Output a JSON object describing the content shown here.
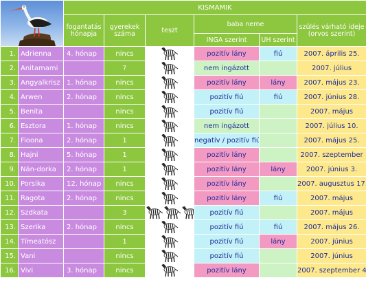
{
  "header": {
    "title": "KISMAMIK",
    "col_fogantatas": "fogantatás\nhónapja",
    "col_gyerekek": "gyerekek\nszáma",
    "col_teszt": "teszt",
    "col_baba_neme": "baba neme",
    "col_inga": "INGA szerint",
    "col_uh": "UH szerint",
    "col_szules": "szülés várható ideje\n(orvos szerint)"
  },
  "logo": {
    "icon": "stork-icon"
  },
  "colors": {
    "header_green": "#8dc63f",
    "name_purple": "#c98be0",
    "pink": "#f39ac3",
    "light_blue": "#c2f1f7",
    "light_green": "#cdf2c4",
    "yellow": "#fde98c",
    "text_blue": "#1e2a9a"
  },
  "rows": [
    {
      "num": "1.",
      "name": "Adrienna",
      "month": "4. hónap",
      "kids": "nincs",
      "zebras": 1,
      "inga": "pozitív lány",
      "inga_color": "pink",
      "uh": "fiú",
      "uh_color": "lblue",
      "date": "2007. április 25."
    },
    {
      "num": "2.",
      "name": "Anitamami",
      "month": "",
      "kids": "?",
      "zebras": 1,
      "inga": "nem ingázott",
      "inga_color": "lgreen",
      "uh": "",
      "uh_color": "lgreen",
      "date": "2007. július"
    },
    {
      "num": "3.",
      "name": "Angyalkrisz",
      "month": "1. hónap",
      "kids": "nincs",
      "zebras": 1,
      "inga": "pozitív lány",
      "inga_color": "pink",
      "uh": "lány",
      "uh_color": "pink",
      "date": "2007. május 23."
    },
    {
      "num": "4.",
      "name": "Arwen",
      "month": "2. hónap",
      "kids": "nincs",
      "zebras": 1,
      "inga": "pozitív fiú",
      "inga_color": "lblue",
      "uh": "fiú",
      "uh_color": "lblue",
      "date": "2007. június 28."
    },
    {
      "num": "5.",
      "name": "Benita",
      "month": "",
      "kids": "nincs",
      "zebras": 1,
      "inga": "pozitív fiú",
      "inga_color": "lblue",
      "uh": "",
      "uh_color": "lgreen",
      "date": "2007. május"
    },
    {
      "num": "6.",
      "name": "Esztora",
      "month": "1. hónap",
      "kids": "nincs",
      "zebras": 1,
      "inga": "nem ingázott",
      "inga_color": "lgreen",
      "uh": "",
      "uh_color": "lgreen",
      "date": "2007. július 10."
    },
    {
      "num": "7.",
      "name": "Fioona",
      "month": "2. hónap",
      "kids": "1",
      "zebras": 1,
      "inga": "negatív / pozitív fiú",
      "inga_color": "lblue",
      "uh": "",
      "uh_color": "lgreen",
      "date": "2007. május 25."
    },
    {
      "num": "8.",
      "name": "Hajni",
      "month": "5. hónap",
      "kids": "1",
      "zebras": 1,
      "inga": "pozitív lány",
      "inga_color": "pink",
      "uh": "",
      "uh_color": "lgreen",
      "date": "2007. szeptember"
    },
    {
      "num": "9.",
      "name": "Nán-dorka",
      "month": "2. hónap",
      "kids": "1",
      "zebras": 1,
      "inga": "pozitív lány",
      "inga_color": "pink",
      "uh": "lány",
      "uh_color": "pink",
      "date": "2007. június 3."
    },
    {
      "num": "10.",
      "name": "Porsika",
      "month": "12. hónap",
      "kids": "nincs",
      "zebras": 1,
      "inga": "pozitív lány",
      "inga_color": "pink",
      "uh": "",
      "uh_color": "lgreen",
      "date": "2007. augusztus 17."
    },
    {
      "num": "11.",
      "name": "Ragota",
      "month": "2. hónap",
      "kids": "nincs",
      "zebras": 1,
      "inga": "pozitív lány",
      "inga_color": "pink",
      "uh": "fiú",
      "uh_color": "lblue",
      "date": "2007. május"
    },
    {
      "num": "12.",
      "name": "Szdkata",
      "month": "",
      "kids": "3",
      "zebras": 3,
      "inga": "pozitív fiú",
      "inga_color": "lblue",
      "uh": "",
      "uh_color": "lgreen",
      "date": "2007. május"
    },
    {
      "num": "13.",
      "name": "Szerika",
      "month": "2. hónap",
      "kids": "nincs",
      "zebras": 1,
      "inga": "pozitív fiú",
      "inga_color": "lblue",
      "uh": "fiú",
      "uh_color": "lblue",
      "date": "2007. május 26."
    },
    {
      "num": "14.",
      "name": "Tímeatósz",
      "month": "",
      "kids": "1",
      "zebras": 1,
      "inga": "pozitív fiú",
      "inga_color": "lblue",
      "uh": "lány",
      "uh_color": "pink",
      "date": "2007. június"
    },
    {
      "num": "15.",
      "name": "Vani",
      "month": "",
      "kids": "nincs",
      "zebras": 1,
      "inga": "pozitív fiú",
      "inga_color": "lblue",
      "uh": "",
      "uh_color": "lgreen",
      "date": "2007. június"
    },
    {
      "num": "16.",
      "name": "Vivi",
      "month": "3. hónap",
      "kids": "nincs",
      "zebras": 1,
      "inga": "pozitív lány",
      "inga_color": "pink",
      "uh": "",
      "uh_color": "lgreen",
      "date": "2007. szeptember 4."
    }
  ]
}
